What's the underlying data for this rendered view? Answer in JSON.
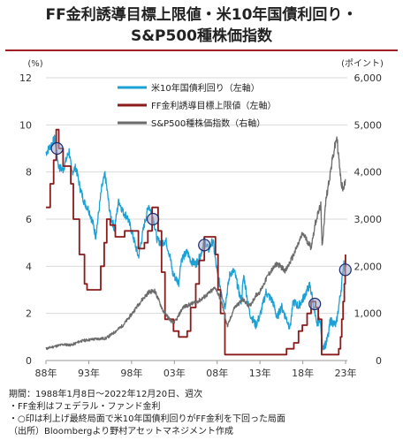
{
  "header": {
    "title_line1": "FF金利誘導目標上限値・米10年国債利回り・",
    "title_line2": "S&P500種株価指数"
  },
  "footer": {
    "line1": "期間：1988年1月8日～2022年12月20日、週次",
    "line2": "・FF金利はフェデラル・ファンド金利",
    "line3": "・○印は利上げ最終局面で米10年国債利回りがFF金利を下回った局面",
    "line4": "（出所）Bloombergより野村アセットマネジメント作成"
  },
  "colors": {
    "accent": "#a01f24",
    "yield": "#1ba1d6",
    "ff": "#8b1a1a",
    "spx": "#6b6b6b"
  },
  "chart_data": {
    "type": "line",
    "y_left": {
      "label": "(%)",
      "min": 0,
      "max": 12,
      "ticks": [
        "0",
        "2",
        "4",
        "6",
        "8",
        "10",
        "12"
      ]
    },
    "y_right": {
      "label": "(ポイント)",
      "min": 0,
      "max": 6000,
      "ticks": [
        "0",
        "1,000",
        "2,000",
        "3,000",
        "4,000",
        "5,000",
        "6,000"
      ]
    },
    "x_axis": {
      "min": 1988,
      "max": 2023.2,
      "ticks": [
        {
          "x": 1988,
          "label": "88年"
        },
        {
          "x": 1993,
          "label": "93年"
        },
        {
          "x": 1998,
          "label": "98年"
        },
        {
          "x": 2003,
          "label": "03年"
        },
        {
          "x": 2008,
          "label": "08年"
        },
        {
          "x": 2013,
          "label": "13年"
        },
        {
          "x": 2018,
          "label": "18年"
        },
        {
          "x": 2023,
          "label": "23年"
        }
      ]
    },
    "grid": true,
    "legend_position": "top-center",
    "series": [
      {
        "name": "米10年国債利回り（左軸）",
        "axis": "left",
        "points": [
          [
            1988,
            8.8
          ],
          [
            1988.5,
            9.1
          ],
          [
            1989,
            9.4
          ],
          [
            1989.5,
            8.2
          ],
          [
            1990,
            8.1
          ],
          [
            1990.7,
            8.9
          ],
          [
            1991,
            8.0
          ],
          [
            1991.5,
            8.2
          ],
          [
            1992,
            7.3
          ],
          [
            1992.5,
            6.7
          ],
          [
            1993,
            6.4
          ],
          [
            1993.5,
            5.8
          ],
          [
            1993.8,
            5.3
          ],
          [
            1994,
            5.8
          ],
          [
            1994.5,
            7.3
          ],
          [
            1994.9,
            7.9
          ],
          [
            1995.5,
            6.2
          ],
          [
            1996,
            5.6
          ],
          [
            1996.5,
            6.8
          ],
          [
            1997,
            6.3
          ],
          [
            1997.5,
            6.1
          ],
          [
            1998,
            5.5
          ],
          [
            1998.8,
            4.4
          ],
          [
            1999,
            4.8
          ],
          [
            1999.5,
            5.8
          ],
          [
            2000,
            6.6
          ],
          [
            2000.5,
            6.1
          ],
          [
            2001,
            5.1
          ],
          [
            2001.5,
            5.0
          ],
          [
            2002,
            5.1
          ],
          [
            2002.5,
            4.4
          ],
          [
            2002.8,
            3.7
          ],
          [
            2003.5,
            3.3
          ],
          [
            2003.8,
            4.3
          ],
          [
            2004.5,
            4.6
          ],
          [
            2005,
            4.2
          ],
          [
            2005.5,
            4.1
          ],
          [
            2006,
            4.4
          ],
          [
            2006.5,
            5.1
          ],
          [
            2007,
            4.7
          ],
          [
            2007.5,
            5.1
          ],
          [
            2008,
            3.7
          ],
          [
            2008.9,
            2.3
          ],
          [
            2009.5,
            3.7
          ],
          [
            2010,
            3.8
          ],
          [
            2010.8,
            2.5
          ],
          [
            2011.1,
            3.6
          ],
          [
            2011.8,
            2.0
          ],
          [
            2012.5,
            1.5
          ],
          [
            2013,
            1.9
          ],
          [
            2013.7,
            2.9
          ],
          [
            2014.5,
            2.5
          ],
          [
            2015,
            1.8
          ],
          [
            2015.5,
            2.3
          ],
          [
            2016.5,
            1.4
          ],
          [
            2016.9,
            2.5
          ],
          [
            2017.5,
            2.3
          ],
          [
            2018,
            2.6
          ],
          [
            2018.8,
            3.2
          ],
          [
            2019.1,
            2.7
          ],
          [
            2019.6,
            1.5
          ],
          [
            2020,
            1.8
          ],
          [
            2020.3,
            0.6
          ],
          [
            2020.7,
            0.7
          ],
          [
            2021,
            1.1
          ],
          [
            2021.2,
            1.7
          ],
          [
            2021.9,
            1.5
          ],
          [
            2022.2,
            2.3
          ],
          [
            2022.5,
            3.1
          ],
          [
            2022.8,
            4.2
          ],
          [
            2022.97,
            3.7
          ]
        ]
      },
      {
        "name": "FF金利誘導目標上限値（左軸）",
        "axis": "left",
        "points": [
          [
            1988,
            6.5
          ],
          [
            1988.5,
            7.5
          ],
          [
            1988.9,
            8.5
          ],
          [
            1989.2,
            9.8
          ],
          [
            1989.5,
            9.0
          ],
          [
            1990,
            8.25
          ],
          [
            1990.9,
            7.5
          ],
          [
            1991.2,
            6.0
          ],
          [
            1991.9,
            4.5
          ],
          [
            1992.5,
            3.25
          ],
          [
            1992.8,
            3.0
          ],
          [
            1994.1,
            3.0
          ],
          [
            1994.4,
            4.0
          ],
          [
            1994.8,
            5.0
          ],
          [
            1995.1,
            6.0
          ],
          [
            1995.5,
            5.75
          ],
          [
            1996.1,
            5.25
          ],
          [
            1997.2,
            5.5
          ],
          [
            1998.8,
            4.75
          ],
          [
            1999.5,
            5.0
          ],
          [
            1999.9,
            5.5
          ],
          [
            2000.4,
            6.5
          ],
          [
            2001.1,
            5.5
          ],
          [
            2001.5,
            3.75
          ],
          [
            2001.9,
            1.75
          ],
          [
            2002.9,
            1.25
          ],
          [
            2003.5,
            1.0
          ],
          [
            2004.5,
            1.25
          ],
          [
            2004.9,
            2.25
          ],
          [
            2005.5,
            3.25
          ],
          [
            2005.9,
            4.25
          ],
          [
            2006.5,
            5.25
          ],
          [
            2007.6,
            5.25
          ],
          [
            2007.8,
            4.5
          ],
          [
            2008.1,
            3.0
          ],
          [
            2008.4,
            2.0
          ],
          [
            2008.9,
            0.25
          ],
          [
            2015.9,
            0.25
          ],
          [
            2016.1,
            0.5
          ],
          [
            2016.95,
            0.75
          ],
          [
            2017.5,
            1.25
          ],
          [
            2017.95,
            1.5
          ],
          [
            2018.5,
            2.0
          ],
          [
            2018.97,
            2.5
          ],
          [
            2019.5,
            2.25
          ],
          [
            2019.8,
            1.75
          ],
          [
            2020.2,
            0.25
          ],
          [
            2022.2,
            0.5
          ],
          [
            2022.4,
            1.0
          ],
          [
            2022.55,
            1.75
          ],
          [
            2022.7,
            2.5
          ],
          [
            2022.85,
            3.25
          ],
          [
            2022.95,
            4.0
          ],
          [
            2022.98,
            4.5
          ]
        ]
      },
      {
        "name": "S&P500種株価指数（右軸）",
        "axis": "right",
        "points": [
          [
            1988,
            250
          ],
          [
            1989,
            300
          ],
          [
            1990,
            340
          ],
          [
            1991,
            330
          ],
          [
            1992,
            410
          ],
          [
            1993,
            440
          ],
          [
            1994,
            460
          ],
          [
            1995,
            470
          ],
          [
            1996,
            600
          ],
          [
            1997,
            750
          ],
          [
            1998,
            980
          ],
          [
            1999,
            1240
          ],
          [
            2000,
            1450
          ],
          [
            2000.7,
            1480
          ],
          [
            2001.7,
            1050
          ],
          [
            2002.8,
            800
          ],
          [
            2003.2,
            850
          ],
          [
            2004,
            1130
          ],
          [
            2005,
            1200
          ],
          [
            2006,
            1280
          ],
          [
            2007,
            1420
          ],
          [
            2007.8,
            1550
          ],
          [
            2008.5,
            1250
          ],
          [
            2009.2,
            720
          ],
          [
            2010,
            1120
          ],
          [
            2011,
            1290
          ],
          [
            2011.8,
            1150
          ],
          [
            2012.5,
            1380
          ],
          [
            2013,
            1460
          ],
          [
            2014,
            1830
          ],
          [
            2015,
            2060
          ],
          [
            2016,
            1900
          ],
          [
            2017,
            2270
          ],
          [
            2018,
            2700
          ],
          [
            2018.97,
            2400
          ],
          [
            2019.5,
            2950
          ],
          [
            2020.1,
            3300
          ],
          [
            2020.25,
            2400
          ],
          [
            2020.7,
            3400
          ],
          [
            2021,
            3750
          ],
          [
            2021.5,
            4300
          ],
          [
            2021.97,
            4750
          ],
          [
            2022.45,
            3800
          ],
          [
            2022.75,
            3600
          ],
          [
            2022.97,
            3850
          ]
        ]
      }
    ],
    "markers": [
      {
        "x": 1989.3,
        "y": 9.0
      },
      {
        "x": 2000.5,
        "y": 6.0
      },
      {
        "x": 2006.5,
        "y": 4.9
      },
      {
        "x": 2019.4,
        "y": 2.4
      },
      {
        "x": 2022.97,
        "y": 3.85
      }
    ]
  }
}
